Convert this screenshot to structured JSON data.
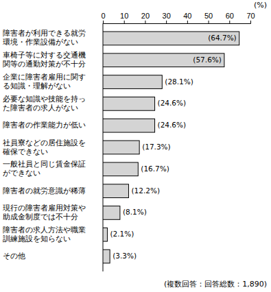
{
  "chart_data": {
    "type": "bar",
    "orientation": "horizontal",
    "categories": [
      "障害者が利用できる就労環境・作業設備がない",
      "車椅子等に対する交通機関等の通勤対策が不十分",
      "企業に障害者雇用に関する知識・理解がない",
      "必要な知識や技能を持った障害者の求人がない",
      "障害者の作業能力が低い",
      "社員寮などの居住施設を確保できない",
      "一般社員と同じ賃金保証ができない",
      "障害者の就労意識が稀薄",
      "現行の障害者雇用対策や助成金制度では不十分",
      "障害者の求人方法や職業訓練施設を知らない",
      "その他"
    ],
    "values": [
      64.7,
      57.6,
      28.1,
      24.6,
      24.6,
      17.3,
      16.7,
      12.2,
      8.1,
      2.1,
      3.3
    ],
    "value_labels": [
      "(64.7%)",
      "(57.6%)",
      "(28.1%)",
      "(24.6%)",
      "(24.6%)",
      "(17.3%)",
      "(16.7%)",
      "(12.2%)",
      "(8.1%)",
      "(2.1%)",
      "(3.3%)"
    ],
    "data_labels": true,
    "color": "#d4d4d4",
    "x_label": "(%)",
    "annotation": "(複数回答：回答総数：1,890)",
    "xlim": [
      0,
      70
    ],
    "xticks": [
      0,
      10,
      20,
      30,
      40,
      50,
      60,
      70
    ],
    "grid": false
  }
}
